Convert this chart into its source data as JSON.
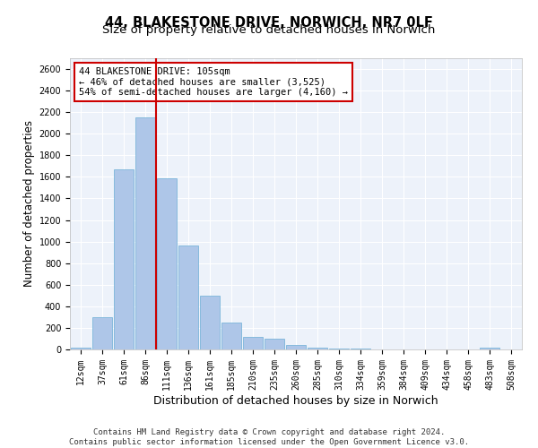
{
  "title_line1": "44, BLAKESTONE DRIVE, NORWICH, NR7 0LF",
  "title_line2": "Size of property relative to detached houses in Norwich",
  "xlabel": "Distribution of detached houses by size in Norwich",
  "ylabel": "Number of detached properties",
  "categories": [
    "12sqm",
    "37sqm",
    "61sqm",
    "86sqm",
    "111sqm",
    "136sqm",
    "161sqm",
    "185sqm",
    "210sqm",
    "235sqm",
    "260sqm",
    "285sqm",
    "310sqm",
    "334sqm",
    "359sqm",
    "384sqm",
    "409sqm",
    "434sqm",
    "458sqm",
    "483sqm",
    "508sqm"
  ],
  "bar_values": [
    20,
    300,
    1670,
    2150,
    1590,
    960,
    500,
    250,
    120,
    100,
    40,
    15,
    10,
    5,
    3,
    2,
    2,
    1,
    0,
    15,
    0
  ],
  "bar_color": "#aec6e8",
  "bar_edgecolor": "#6aaed6",
  "vline_x": 3.5,
  "vline_color": "#cc0000",
  "annotation_text": "44 BLAKESTONE DRIVE: 105sqm\n← 46% of detached houses are smaller (3,525)\n54% of semi-detached houses are larger (4,160) →",
  "annotation_box_edgecolor": "#cc0000",
  "annotation_box_facecolor": "#ffffff",
  "ylim": [
    0,
    2700
  ],
  "yticks": [
    0,
    200,
    400,
    600,
    800,
    1000,
    1200,
    1400,
    1600,
    1800,
    2000,
    2200,
    2400,
    2600
  ],
  "footer_line1": "Contains HM Land Registry data © Crown copyright and database right 2024.",
  "footer_line2": "Contains public sector information licensed under the Open Government Licence v3.0.",
  "bg_color": "#edf2fa",
  "grid_color": "#ffffff",
  "title_fontsize": 10.5,
  "subtitle_fontsize": 9.5,
  "axis_label_fontsize": 8.5,
  "tick_fontsize": 7,
  "annotation_fontsize": 7.5,
  "footer_fontsize": 6.5
}
